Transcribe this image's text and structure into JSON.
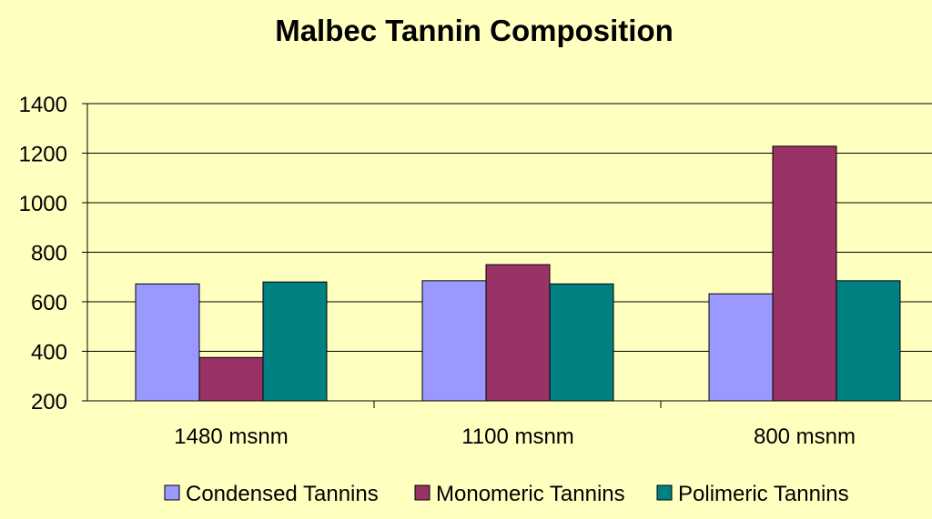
{
  "chart_data": {
    "type": "bar",
    "title": "Malbec Tannin Composition",
    "xlabel": "",
    "ylabel": "",
    "categories": [
      "1480 msnm",
      "1100 msnm",
      "800 msnm"
    ],
    "series": [
      {
        "name": "Condensed Tannins",
        "values": [
          672,
          685,
          632
        ],
        "color": "#9999ff"
      },
      {
        "name": "Monomeric Tannins",
        "values": [
          375,
          750,
          1228
        ],
        "color": "#993366"
      },
      {
        "name": "Polimeric Tannins",
        "values": [
          680,
          672,
          685
        ],
        "color": "#008080"
      }
    ],
    "ylim": [
      200,
      1400
    ],
    "yticks": [
      "200",
      "400",
      "600",
      "800",
      "1000",
      "1200",
      "1400"
    ],
    "grid": true,
    "legend_position": "bottom",
    "background_color": "#ffffc0"
  }
}
